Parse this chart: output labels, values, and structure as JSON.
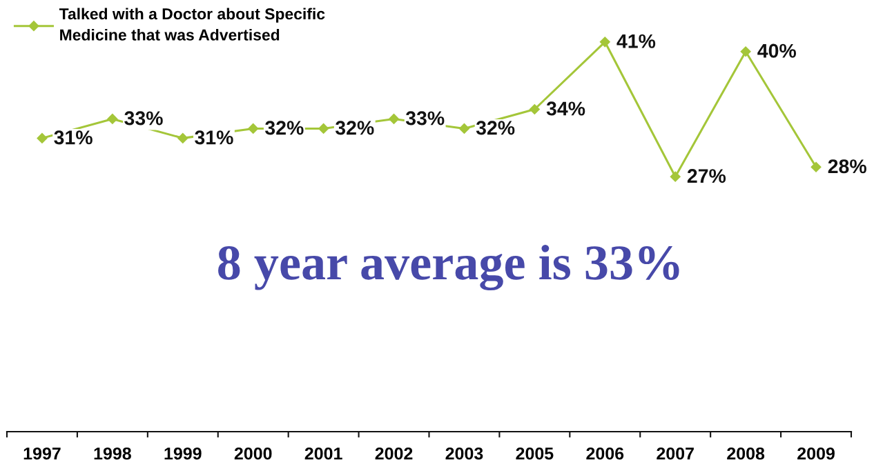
{
  "chart_data": {
    "type": "line",
    "categories": [
      "1997",
      "1998",
      "1999",
      "2000",
      "2001",
      "2002",
      "2003",
      "2005",
      "2006",
      "2007",
      "2008",
      "2009"
    ],
    "series": [
      {
        "name": "Talked with a Doctor about Specific\nMedicine that was Advertised",
        "color": "#a4c639",
        "values": [
          31,
          33,
          31,
          32,
          32,
          33,
          32,
          34,
          41,
          27,
          40,
          28
        ],
        "value_labels": [
          "31%",
          "33%",
          "31%",
          "32%",
          "32%",
          "33%",
          "32%",
          "34%",
          "41%",
          "27%",
          "40%",
          "28%"
        ]
      }
    ],
    "tick_labels": "x",
    "marker": "diamond",
    "line_style": "solid",
    "legend": "top left",
    "grid": false,
    "annotations": [
      "8 year average is 33%"
    ]
  }
}
